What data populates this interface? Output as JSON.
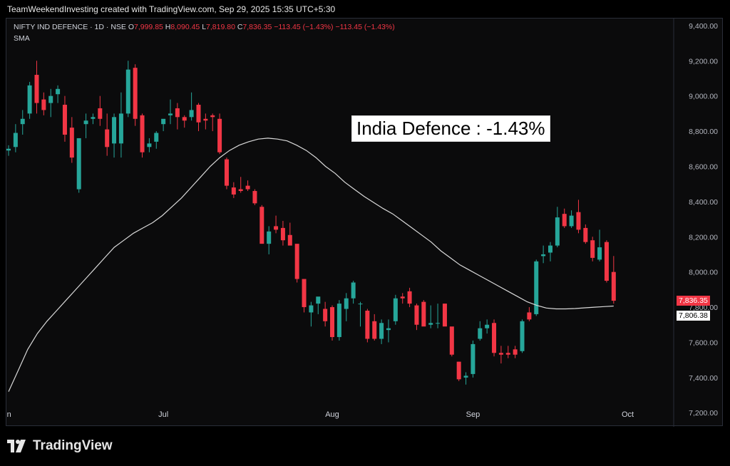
{
  "header": {
    "credit": "TeamWeekendInvesting created with TradingView.com, Sep 29, 2025 15:35 UTC+5:30"
  },
  "legend": {
    "symbol": "NIFTY IND DEFENCE · 1D · NSE",
    "o_label": "O",
    "o_value": "7,999.85",
    "h_label": "H",
    "h_value": "8,090.45",
    "l_label": "L",
    "l_value": "7,819.80",
    "c_label": "C",
    "c_value": "7,836.35",
    "change": "−113.45 (−1.43%)",
    "change2": "−113.45 (−1.43%)",
    "sma_label": "SMA"
  },
  "annotation": "India Defence : -1.43%",
  "price_badge": "7,836.35",
  "sma_badge": "7,806.38",
  "footer": {
    "brand": "TradingView"
  },
  "colors": {
    "up": "#26a69a",
    "down": "#f23645",
    "sma": "#d9d9d9",
    "background": "#0b0b0c",
    "badge_sma_bg": "#ffffff"
  },
  "chart_data": {
    "type": "candlestick",
    "y_ticks": [
      "9,400.00",
      "9,200.00",
      "9,000.00",
      "8,800.00",
      "8,600.00",
      "8,400.00",
      "8,200.00",
      "8,000.00",
      "7,800.00",
      "7,600.00",
      "7,400.00",
      "7,200.00"
    ],
    "x_ticks": [
      "Jun",
      "Jul",
      "Aug",
      "Sep",
      "Oct"
    ],
    "ylim": [
      7120,
      9440
    ],
    "grid": false,
    "candles": [
      {
        "o": 8690,
        "h": 8720,
        "l": 8660,
        "c": 8700
      },
      {
        "o": 8710,
        "h": 8840,
        "l": 8680,
        "c": 8790
      },
      {
        "o": 8840,
        "h": 8920,
        "l": 8780,
        "c": 8870
      },
      {
        "o": 8900,
        "h": 9080,
        "l": 8870,
        "c": 9060
      },
      {
        "o": 9120,
        "h": 9200,
        "l": 8900,
        "c": 8960
      },
      {
        "o": 8980,
        "h": 9020,
        "l": 8890,
        "c": 8920
      },
      {
        "o": 8960,
        "h": 9040,
        "l": 8880,
        "c": 9000
      },
      {
        "o": 9010,
        "h": 9060,
        "l": 8960,
        "c": 9040
      },
      {
        "o": 8950,
        "h": 9000,
        "l": 8740,
        "c": 8780
      },
      {
        "o": 8820,
        "h": 8880,
        "l": 8620,
        "c": 8650
      },
      {
        "o": 8470,
        "h": 8760,
        "l": 8450,
        "c": 8760
      },
      {
        "o": 8840,
        "h": 8900,
        "l": 8760,
        "c": 8860
      },
      {
        "o": 8870,
        "h": 8900,
        "l": 8840,
        "c": 8880
      },
      {
        "o": 8930,
        "h": 9000,
        "l": 8830,
        "c": 8870
      },
      {
        "o": 8810,
        "h": 8900,
        "l": 8660,
        "c": 8710
      },
      {
        "o": 8730,
        "h": 8900,
        "l": 8650,
        "c": 8880
      },
      {
        "o": 8730,
        "h": 9020,
        "l": 8650,
        "c": 8900
      },
      {
        "o": 8900,
        "h": 9200,
        "l": 8880,
        "c": 9150
      },
      {
        "o": 9160,
        "h": 9180,
        "l": 8830,
        "c": 8870
      },
      {
        "o": 8890,
        "h": 8900,
        "l": 8650,
        "c": 8680
      },
      {
        "o": 8710,
        "h": 8760,
        "l": 8680,
        "c": 8730
      },
      {
        "o": 8740,
        "h": 8800,
        "l": 8700,
        "c": 8790
      },
      {
        "o": 8840,
        "h": 8860,
        "l": 8800,
        "c": 8870
      },
      {
        "o": 8890,
        "h": 8980,
        "l": 8840,
        "c": 8900
      },
      {
        "o": 8930,
        "h": 8960,
        "l": 8810,
        "c": 8880
      },
      {
        "o": 8880,
        "h": 8890,
        "l": 8820,
        "c": 8860
      },
      {
        "o": 8880,
        "h": 9020,
        "l": 8860,
        "c": 8920
      },
      {
        "o": 8950,
        "h": 8960,
        "l": 8800,
        "c": 8850
      },
      {
        "o": 8870,
        "h": 8900,
        "l": 8810,
        "c": 8860
      },
      {
        "o": 8890,
        "h": 8900,
        "l": 8800,
        "c": 8880
      },
      {
        "o": 8870,
        "h": 8900,
        "l": 8670,
        "c": 8680
      },
      {
        "o": 8640,
        "h": 8650,
        "l": 8470,
        "c": 8490
      },
      {
        "o": 8480,
        "h": 8510,
        "l": 8420,
        "c": 8440
      },
      {
        "o": 8470,
        "h": 8540,
        "l": 8450,
        "c": 8460
      },
      {
        "o": 8490,
        "h": 8520,
        "l": 8460,
        "c": 8470
      },
      {
        "o": 8460,
        "h": 8470,
        "l": 8380,
        "c": 8390
      },
      {
        "o": 8370,
        "h": 8380,
        "l": 8180,
        "c": 8160
      },
      {
        "o": 8160,
        "h": 8260,
        "l": 8100,
        "c": 8230
      },
      {
        "o": 8260,
        "h": 8320,
        "l": 8220,
        "c": 8240
      },
      {
        "o": 8250,
        "h": 8290,
        "l": 8150,
        "c": 8180
      },
      {
        "o": 8210,
        "h": 8280,
        "l": 8160,
        "c": 8150
      },
      {
        "o": 8160,
        "h": 8150,
        "l": 7940,
        "c": 7960
      },
      {
        "o": 7960,
        "h": 7950,
        "l": 7770,
        "c": 7800
      },
      {
        "o": 7770,
        "h": 7830,
        "l": 7690,
        "c": 7810
      },
      {
        "o": 7820,
        "h": 7850,
        "l": 7760,
        "c": 7860
      },
      {
        "o": 7790,
        "h": 7830,
        "l": 7690,
        "c": 7720
      },
      {
        "o": 7800,
        "h": 7810,
        "l": 7610,
        "c": 7630
      },
      {
        "o": 7630,
        "h": 7840,
        "l": 7610,
        "c": 7820
      },
      {
        "o": 7790,
        "h": 7880,
        "l": 7720,
        "c": 7850
      },
      {
        "o": 7850,
        "h": 7950,
        "l": 7820,
        "c": 7940
      },
      {
        "o": 7820,
        "h": 7830,
        "l": 7690,
        "c": 7820
      },
      {
        "o": 7780,
        "h": 7790,
        "l": 7600,
        "c": 7620
      },
      {
        "o": 7720,
        "h": 7760,
        "l": 7610,
        "c": 7620
      },
      {
        "o": 7620,
        "h": 7730,
        "l": 7590,
        "c": 7710
      },
      {
        "o": 7670,
        "h": 7730,
        "l": 7600,
        "c": 7680
      },
      {
        "o": 7720,
        "h": 7870,
        "l": 7700,
        "c": 7850
      },
      {
        "o": 7860,
        "h": 7880,
        "l": 7820,
        "c": 7850
      },
      {
        "o": 7890,
        "h": 7910,
        "l": 7800,
        "c": 7820
      },
      {
        "o": 7810,
        "h": 7820,
        "l": 7670,
        "c": 7700
      },
      {
        "o": 7830,
        "h": 7840,
        "l": 7710,
        "c": 7690
      },
      {
        "o": 7700,
        "h": 7810,
        "l": 7680,
        "c": 7710
      },
      {
        "o": 7710,
        "h": 7820,
        "l": 7680,
        "c": 7710
      },
      {
        "o": 7820,
        "h": 7820,
        "l": 7700,
        "c": 7690
      },
      {
        "o": 7690,
        "h": 7680,
        "l": 7520,
        "c": 7530
      },
      {
        "o": 7490,
        "h": 7490,
        "l": 7380,
        "c": 7390
      },
      {
        "o": 7400,
        "h": 7430,
        "l": 7360,
        "c": 7410
      },
      {
        "o": 7420,
        "h": 7610,
        "l": 7400,
        "c": 7590
      },
      {
        "o": 7620,
        "h": 7720,
        "l": 7610,
        "c": 7680
      },
      {
        "o": 7680,
        "h": 7730,
        "l": 7650,
        "c": 7700
      },
      {
        "o": 7710,
        "h": 7730,
        "l": 7520,
        "c": 7540
      },
      {
        "o": 7540,
        "h": 7580,
        "l": 7480,
        "c": 7530
      },
      {
        "o": 7540,
        "h": 7580,
        "l": 7510,
        "c": 7530
      },
      {
        "o": 7560,
        "h": 7580,
        "l": 7510,
        "c": 7530
      },
      {
        "o": 7550,
        "h": 7730,
        "l": 7540,
        "c": 7720
      },
      {
        "o": 7770,
        "h": 7800,
        "l": 7720,
        "c": 7730
      },
      {
        "o": 7760,
        "h": 8070,
        "l": 7750,
        "c": 8060
      },
      {
        "o": 8090,
        "h": 8150,
        "l": 8050,
        "c": 8100
      },
      {
        "o": 8110,
        "h": 8170,
        "l": 8060,
        "c": 8150
      },
      {
        "o": 8150,
        "h": 8370,
        "l": 8140,
        "c": 8310
      },
      {
        "o": 8330,
        "h": 8360,
        "l": 8250,
        "c": 8260
      },
      {
        "o": 8260,
        "h": 8350,
        "l": 8250,
        "c": 8320
      },
      {
        "o": 8340,
        "h": 8410,
        "l": 8220,
        "c": 8240
      },
      {
        "o": 8250,
        "h": 8270,
        "l": 8160,
        "c": 8170
      },
      {
        "o": 8180,
        "h": 8200,
        "l": 8060,
        "c": 8080
      },
      {
        "o": 8070,
        "h": 8240,
        "l": 8060,
        "c": 8140
      },
      {
        "o": 8170,
        "h": 8180,
        "l": 7940,
        "c": 7950
      },
      {
        "o": 7999.85,
        "h": 8090.45,
        "l": 7819.8,
        "c": 7836.35
      }
    ],
    "sma": [
      7320,
      7440,
      7560,
      7650,
      7720,
      7780,
      7840,
      7900,
      7960,
      8020,
      8080,
      8140,
      8180,
      8220,
      8250,
      8280,
      8320,
      8370,
      8420,
      8480,
      8540,
      8600,
      8650,
      8690,
      8720,
      8740,
      8755,
      8760,
      8755,
      8745,
      8720,
      8690,
      8650,
      8600,
      8560,
      8510,
      8470,
      8430,
      8395,
      8360,
      8330,
      8290,
      8250,
      8210,
      8170,
      8120,
      8080,
      8040,
      8010,
      7980,
      7950,
      7920,
      7890,
      7860,
      7830,
      7810,
      7795,
      7790,
      7790,
      7792,
      7796,
      7800,
      7803,
      7806.38
    ]
  }
}
